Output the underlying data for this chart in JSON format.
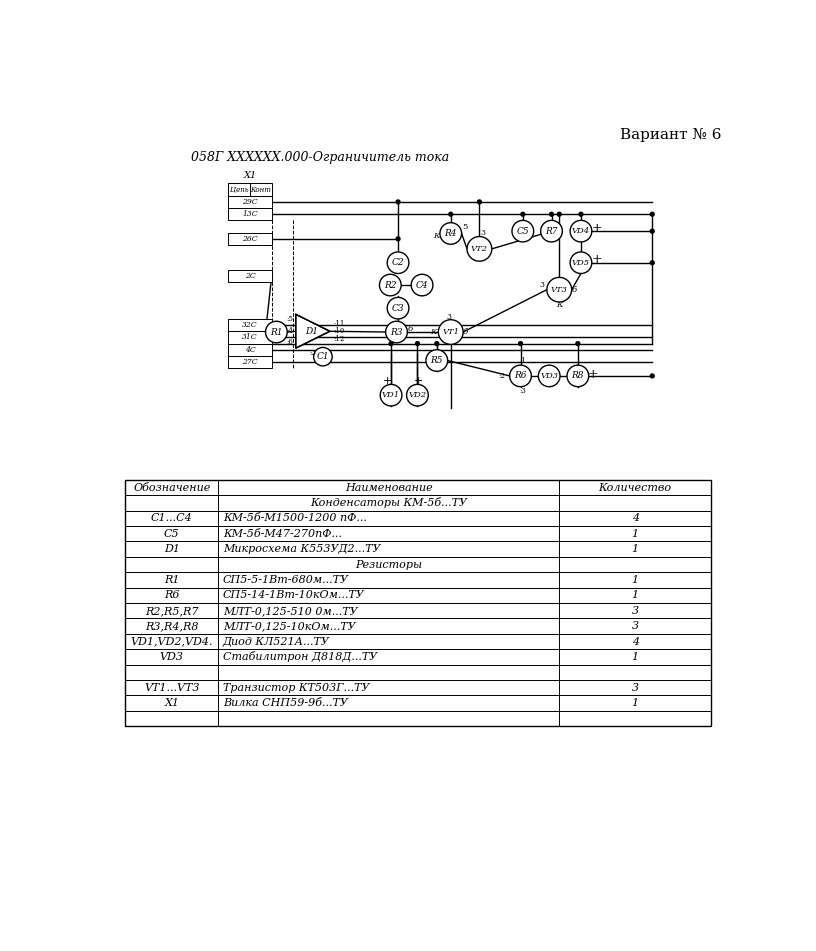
{
  "title_left": "058Г XXXXXX.000-Ограничитель тока",
  "title_right": "Вариант № 6",
  "bg_color": "#ffffff",
  "table_header": [
    "Обозначение",
    "Наименование",
    "Количество"
  ],
  "table_rows": [
    [
      "",
      "Конденсаторы КМ-5б...ТУ",
      ""
    ],
    [
      "С1...С4",
      "КМ-5б-М1500-1200 пФ...",
      "4"
    ],
    [
      "С5",
      "КМ-5б-М47-270пФ...",
      "1"
    ],
    [
      "D1",
      "Микросхема К553УД2...ТУ",
      "1"
    ],
    [
      "",
      "Резисторы",
      ""
    ],
    [
      "R1",
      "СП5-5-1Вт-680м...ТУ",
      "1"
    ],
    [
      "R6",
      "СП5-14-1Вт-10кОм...ТУ",
      "1"
    ],
    [
      "R2,R5,R7",
      "МЛТ-0,125-510 0м...ТУ",
      "3"
    ],
    [
      "R3,R4,R8",
      "МЛТ-0,125-10кОм...ТУ",
      "3"
    ],
    [
      "VD1,VD2,VD4.",
      "Диод КЛ521А...ТУ",
      "4"
    ],
    [
      "VD3",
      "Стабилитрон Д818Д...ТУ",
      "1"
    ],
    [
      "",
      "",
      ""
    ],
    [
      "VT1...VT3",
      "Транзистор КТ503Г...ТУ",
      "3"
    ],
    [
      "X1",
      "Вилка СНП59-9б...ТУ",
      "1"
    ],
    [
      "",
      "",
      ""
    ]
  ]
}
